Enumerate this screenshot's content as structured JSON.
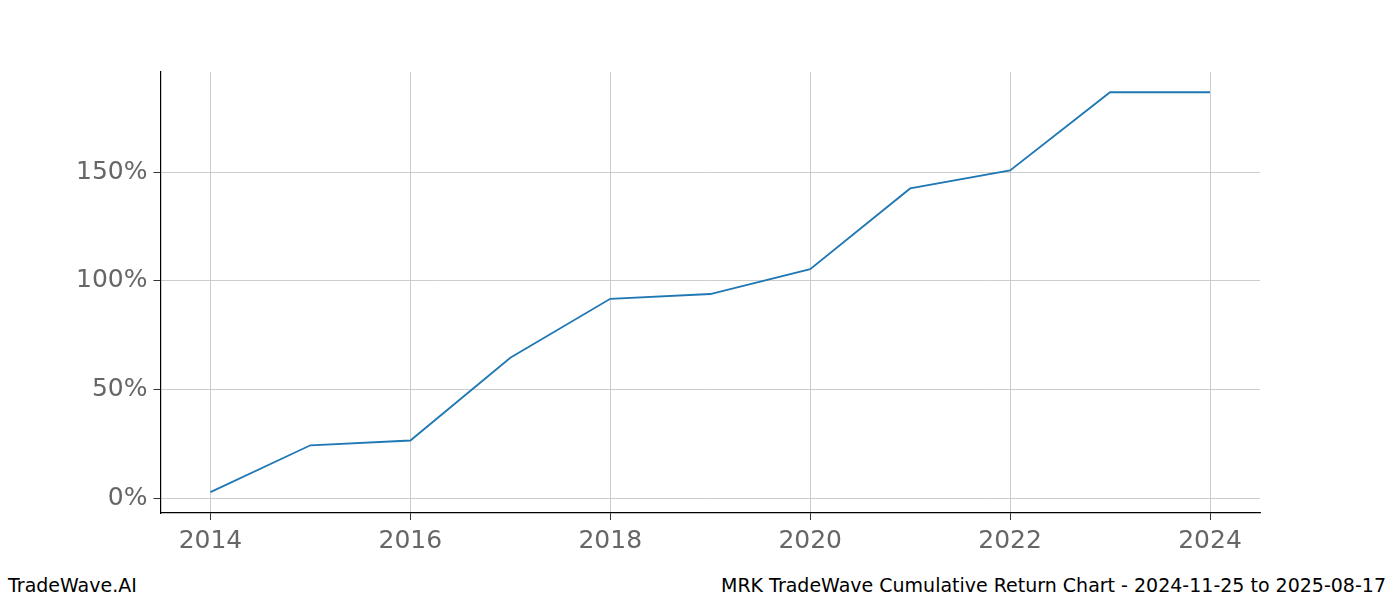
{
  "chart_data": {
    "type": "line",
    "annotations": [
      "TradeWave.AI",
      "MRK TradeWave Cumulative Return Chart - 2024-11-25 to 2025-08-17"
    ],
    "x": [
      2014,
      2015,
      2016,
      2017,
      2018,
      2019,
      2020,
      2021,
      2022,
      2023,
      2024
    ],
    "values": [
      3,
      24.5,
      26.7,
      64.7,
      91.8,
      94,
      105.4,
      142.5,
      150.8,
      186.7,
      186.7
    ],
    "color": "#1f77b4",
    "xlim": [
      2013.5,
      2024.5
    ],
    "xticks": [
      2014,
      2016,
      2018,
      2020,
      2022,
      2024
    ],
    "ylim": [
      -6.6,
      196
    ],
    "yticks": [
      {
        "value": 0,
        "label": "0%"
      },
      {
        "value": 50,
        "label": "50%"
      },
      {
        "value": 100,
        "label": "100%"
      },
      {
        "value": 150,
        "label": "150%"
      }
    ],
    "grid": true
  }
}
